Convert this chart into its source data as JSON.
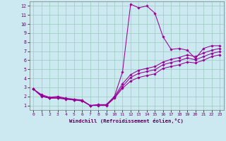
{
  "xlabel": "Windchill (Refroidissement éolien,°C)",
  "bg_color": "#cce8f0",
  "line_color": "#990099",
  "grid_color": "#99ccbb",
  "xlim": [
    -0.5,
    23.5
  ],
  "ylim": [
    0.5,
    12.5
  ],
  "xticks": [
    0,
    1,
    2,
    3,
    4,
    5,
    6,
    7,
    8,
    9,
    10,
    11,
    12,
    13,
    14,
    15,
    16,
    17,
    18,
    19,
    20,
    21,
    22,
    23
  ],
  "yticks": [
    1,
    2,
    3,
    4,
    5,
    6,
    7,
    8,
    9,
    10,
    11,
    12
  ],
  "lines": [
    {
      "x": [
        0,
        1,
        2,
        3,
        4,
        5,
        6,
        7,
        8,
        9,
        10,
        11,
        12,
        13,
        14,
        15,
        16,
        17,
        18,
        19,
        20,
        21,
        22,
        23
      ],
      "y": [
        2.8,
        2.2,
        1.9,
        2.0,
        1.8,
        1.7,
        1.6,
        1.0,
        1.1,
        1.1,
        2.0,
        4.7,
        12.2,
        11.8,
        12.0,
        11.2,
        8.6,
        7.2,
        7.3,
        7.1,
        6.2,
        7.3,
        7.6,
        7.6
      ]
    },
    {
      "x": [
        0,
        1,
        2,
        3,
        4,
        5,
        6,
        7,
        8,
        9,
        10,
        11,
        12,
        13,
        14,
        15,
        16,
        17,
        18,
        19,
        20,
        21,
        22,
        23
      ],
      "y": [
        2.8,
        2.1,
        1.85,
        1.9,
        1.75,
        1.65,
        1.55,
        1.0,
        1.05,
        1.05,
        1.95,
        3.4,
        4.4,
        4.9,
        5.1,
        5.3,
        5.8,
        6.1,
        6.3,
        6.6,
        6.4,
        6.8,
        7.1,
        7.3
      ]
    },
    {
      "x": [
        0,
        1,
        2,
        3,
        4,
        5,
        6,
        7,
        8,
        9,
        10,
        11,
        12,
        13,
        14,
        15,
        16,
        17,
        18,
        19,
        20,
        21,
        22,
        23
      ],
      "y": [
        2.8,
        2.05,
        1.82,
        1.85,
        1.72,
        1.62,
        1.52,
        1.0,
        1.02,
        1.02,
        1.88,
        3.1,
        4.1,
        4.55,
        4.75,
        4.95,
        5.5,
        5.75,
        5.95,
        6.25,
        6.05,
        6.4,
        6.75,
        6.95
      ]
    },
    {
      "x": [
        0,
        1,
        2,
        3,
        4,
        5,
        6,
        7,
        8,
        9,
        10,
        11,
        12,
        13,
        14,
        15,
        16,
        17,
        18,
        19,
        20,
        21,
        22,
        23
      ],
      "y": [
        2.8,
        2.0,
        1.8,
        1.8,
        1.7,
        1.6,
        1.5,
        1.0,
        1.0,
        1.0,
        1.8,
        2.9,
        3.7,
        4.1,
        4.3,
        4.5,
        5.1,
        5.3,
        5.5,
        5.8,
        5.7,
        6.0,
        6.4,
        6.6
      ]
    }
  ]
}
